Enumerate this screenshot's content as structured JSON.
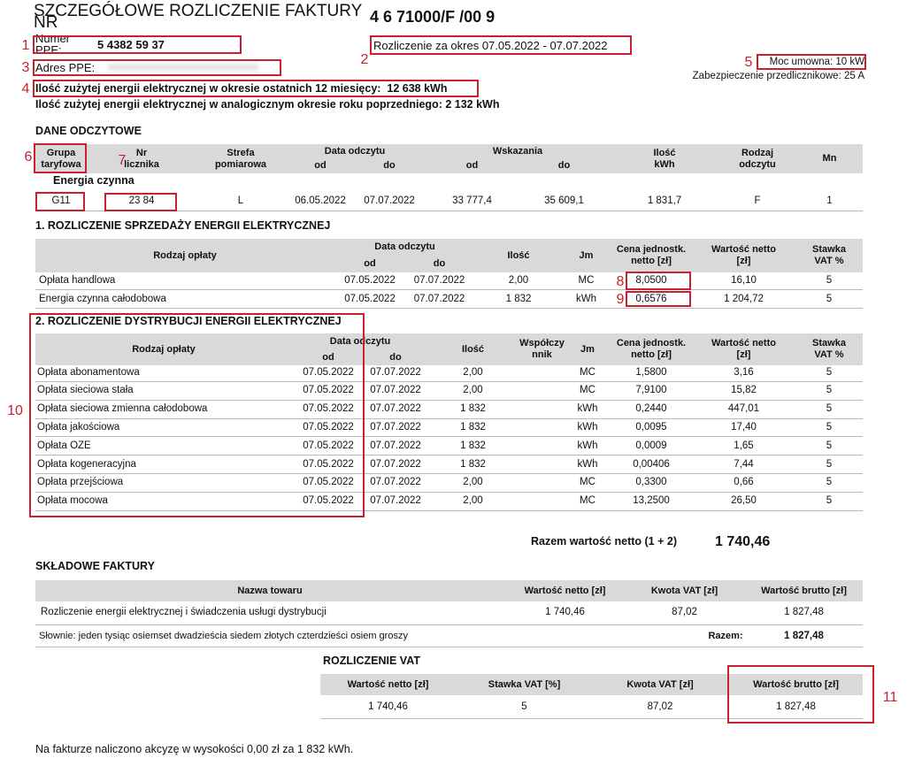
{
  "header": {
    "title": "SZCZEGÓŁOWE ROZLICZENIE FAKTURY NR",
    "invoice_number": "4 6 71000/F /00 9",
    "ppe_label": "Numer PPE:",
    "ppe_value": "5 4382 59 37",
    "period": "Rozliczenie za okres 07.05.2022 - 07.07.2022",
    "address_label": "Adres PPE:",
    "contract_power": "Moc umowna: 10 kW",
    "protection": "Zabezpieczenie przedlicznikowe: 25 A",
    "usage_12_months": "Ilość zużytej energii elektrycznej w okresie ostatnich 12 miesięcy:  12 638 kWh",
    "usage_previous_year": "Ilość zużytej energii elektrycznej w analogicznym okresie roku poprzedniego: 2 132 kWh"
  },
  "readings": {
    "title": "DANE ODCZYTOWE",
    "headers": [
      "Grupa\ntaryfowa",
      "Nr\nlicznika",
      "Strefa\npomiarowa",
      "Data odczytu",
      "Wskazania",
      "Ilość\nkWh",
      "Rodzaj\nodczytu",
      "Mn"
    ],
    "subheaders": [
      "od",
      "do",
      "od",
      "do"
    ],
    "group": "Energia czynna",
    "rows": [
      [
        "G11",
        "23 84",
        "L",
        "06.05.2022",
        "07.07.2022",
        "33 777,4",
        "35 609,1",
        "1 831,7",
        "F",
        "1"
      ]
    ]
  },
  "sales": {
    "title": "1. ROZLICZENIE SPRZEDAŻY ENERGII ELEKTRYCZNEJ",
    "headers": [
      "Rodzaj opłaty",
      "Data odczytu",
      "Ilość",
      "Jm",
      "Cena jednostk.\nnetto [zł]",
      "Wartość netto\n[zł]",
      "Stawka\nVAT %"
    ],
    "subheaders": [
      "od",
      "do"
    ],
    "rows": [
      [
        "Opłata handlowa",
        "07.05.2022",
        "07.07.2022",
        "2,00",
        "MC",
        "8,0500",
        "16,10",
        "5"
      ],
      [
        "Energia czynna całodobowa",
        "07.05.2022",
        "07.07.2022",
        "1 832",
        "kWh",
        "0,6576",
        "1 204,72",
        "5"
      ]
    ]
  },
  "distribution": {
    "title": "2. ROZLICZENIE DYSTRYBUCJI ENERGII ELEKTRYCZNEJ",
    "headers": [
      "Rodzaj opłaty",
      "Data odczytu",
      "Ilość",
      "Współczy\nnnik",
      "Jm",
      "Cena jednostk.\nnetto [zł]",
      "Wartość netto\n[zł]",
      "Stawka\nVAT %"
    ],
    "subheaders": [
      "od",
      "do"
    ],
    "rows": [
      [
        "Opłata abonamentowa",
        "07.05.2022",
        "07.07.2022",
        "2,00",
        "MC",
        "1,5800",
        "3,16",
        "5"
      ],
      [
        "Opłata sieciowa stała",
        "07.05.2022",
        "07.07.2022",
        "2,00",
        "MC",
        "7,9100",
        "15,82",
        "5"
      ],
      [
        "Opłata sieciowa zmienna całodobowa",
        "07.05.2022",
        "07.07.2022",
        "1 832",
        "kWh",
        "0,2440",
        "447,01",
        "5"
      ],
      [
        "Opłata jakościowa",
        "07.05.2022",
        "07.07.2022",
        "1 832",
        "kWh",
        "0,0095",
        "17,40",
        "5"
      ],
      [
        "Opłata OZE",
        "07.05.2022",
        "07.07.2022",
        "1 832",
        "kWh",
        "0,0009",
        "1,65",
        "5"
      ],
      [
        "Opłata kogeneracyjna",
        "07.05.2022",
        "07.07.2022",
        "1 832",
        "kWh",
        "0,00406",
        "7,44",
        "5"
      ],
      [
        "Opłata przejściowa",
        "07.05.2022",
        "07.07.2022",
        "2,00",
        "MC",
        "0,3300",
        "0,66",
        "5"
      ],
      [
        "Opłata mocowa",
        "07.05.2022",
        "07.07.2022",
        "2,00",
        "MC",
        "13,2500",
        "26,50",
        "5"
      ]
    ]
  },
  "net_total": {
    "label": "Razem wartość netto (1 + 2)",
    "value": "1 740,46"
  },
  "components": {
    "title": "SKŁADOWE FAKTURY",
    "headers": [
      "Nazwa towaru",
      "Wartość netto [zł]",
      "Kwota VAT [zł]",
      "Wartość brutto [zł]"
    ],
    "rows": [
      [
        "Rozliczenie energii elektrycznej i świadczenia usługi dystrybucji",
        "1 740,46",
        "87,02",
        "1 827,48"
      ]
    ],
    "in_words": "Słownie: jeden tysiąc osiemset dwadzieścia siedem złotych czterdzieści osiem groszy",
    "total_label": "Razem:",
    "total_value": "1 827,48"
  },
  "vat": {
    "title": "ROZLICZENIE VAT",
    "headers": [
      "Wartość netto [zł]",
      "Stawka VAT [%]",
      "Kwota VAT [zł]",
      "Wartość brutto [zł]"
    ],
    "rows": [
      [
        "1 740,46",
        "5",
        "87,02",
        "1 827,48"
      ]
    ]
  },
  "footer": "Na fakturze naliczono akcyzę w wysokości 0,00 zł za 1 832 kWh.",
  "callouts": [
    "1",
    "2",
    "3",
    "4",
    "5",
    "6",
    "7",
    "8",
    "9",
    "10",
    "11"
  ]
}
